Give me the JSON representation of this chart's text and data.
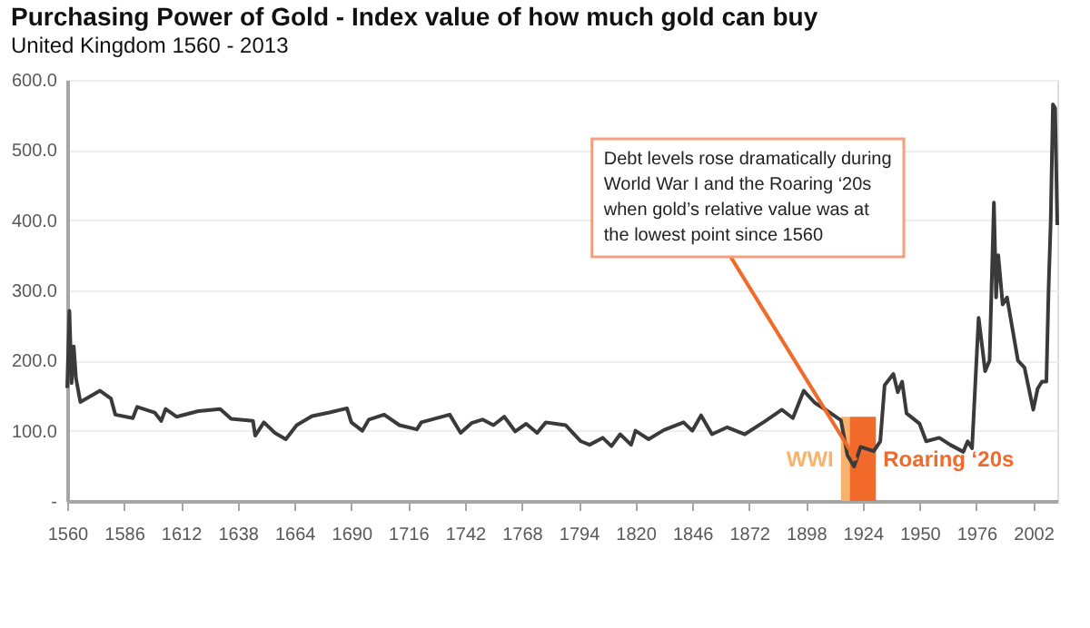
{
  "chart_data": {
    "type": "line",
    "title": "Purchasing Power of Gold - Index value of how much gold can buy",
    "subtitle": "United Kingdom 1560 - 2013",
    "x": [
      1560,
      1561,
      1562,
      1563,
      1564,
      1566,
      1575,
      1580,
      1582,
      1590,
      1592,
      1600,
      1603,
      1605,
      1610,
      1620,
      1630,
      1635,
      1645,
      1646,
      1650,
      1655,
      1660,
      1665,
      1672,
      1680,
      1688,
      1690,
      1695,
      1698,
      1705,
      1712,
      1720,
      1722,
      1735,
      1740,
      1745,
      1750,
      1755,
      1760,
      1765,
      1770,
      1775,
      1779,
      1788,
      1795,
      1799,
      1805,
      1809,
      1813,
      1818,
      1820,
      1826,
      1833,
      1842,
      1846,
      1850,
      1855,
      1862,
      1870,
      1879,
      1887,
      1892,
      1897,
      1902,
      1907,
      1914,
      1917,
      1920,
      1923,
      1929,
      1932,
      1934,
      1938,
      1940,
      1942,
      1944,
      1950,
      1953,
      1959,
      1964,
      1970,
      1972,
      1974,
      1977,
      1980,
      1982,
      1984,
      1985,
      1986,
      1988,
      1990,
      1995,
      1998,
      2002,
      2004,
      2006,
      2008,
      2009,
      2010,
      2011,
      2012,
      2013
    ],
    "series": [
      {
        "color": "#3a3a3a",
        "values": [
          161,
          271,
          168,
          220,
          175,
          141,
          157,
          146,
          123,
          118,
          134,
          126,
          114,
          131,
          120,
          128,
          131,
          117,
          114,
          93,
          112,
          97,
          88,
          108,
          121,
          126,
          132,
          112,
          100,
          116,
          123,
          108,
          102,
          112,
          123,
          97,
          111,
          116,
          108,
          120,
          99,
          110,
          97,
          112,
          108,
          85,
          80,
          90,
          78,
          95,
          80,
          100,
          88,
          101,
          112,
          100,
          122,
          95,
          105,
          95,
          113,
          130,
          118,
          157,
          140,
          130,
          115,
          65,
          49,
          77,
          71,
          85,
          165,
          181,
          155,
          170,
          125,
          110,
          85,
          90,
          80,
          70,
          85,
          75,
          261,
          185,
          200,
          425,
          290,
          350,
          280,
          290,
          200,
          190,
          130,
          160,
          170,
          170,
          300,
          400,
          565,
          560,
          393
        ]
      }
    ],
    "xlim": [
      1560,
      2013
    ],
    "xticks": [
      1560,
      1586,
      1612,
      1638,
      1664,
      1690,
      1716,
      1742,
      1768,
      1794,
      1820,
      1846,
      1872,
      1898,
      1924,
      1950,
      1976,
      2002
    ],
    "ylim": [
      0,
      600
    ],
    "yticks": [
      {
        "value": 0,
        "label": "-"
      },
      {
        "value": 100,
        "label": "100.0"
      },
      {
        "value": 200,
        "label": "200.0"
      },
      {
        "value": 300,
        "label": "300.0"
      },
      {
        "value": 400,
        "label": "400.0"
      },
      {
        "value": 500,
        "label": "500.0"
      },
      {
        "value": 600,
        "label": "600.0"
      }
    ],
    "grid": "y",
    "bands": [
      {
        "axis": "x",
        "from": 1914,
        "to": 1918,
        "label": "WWI",
        "color": "#f9b26b"
      },
      {
        "axis": "x",
        "from": 1918,
        "to": 1930,
        "label": "Roaring ‘20s",
        "color": "#f26a2a"
      }
    ],
    "annotations": [
      {
        "text": "Debt levels rose dramatically during World War I and the Roaring ‘20s when gold’s relative value was at the lowest point since 1560",
        "x": 1921,
        "y": 58
      }
    ],
    "tick_labels": true
  }
}
